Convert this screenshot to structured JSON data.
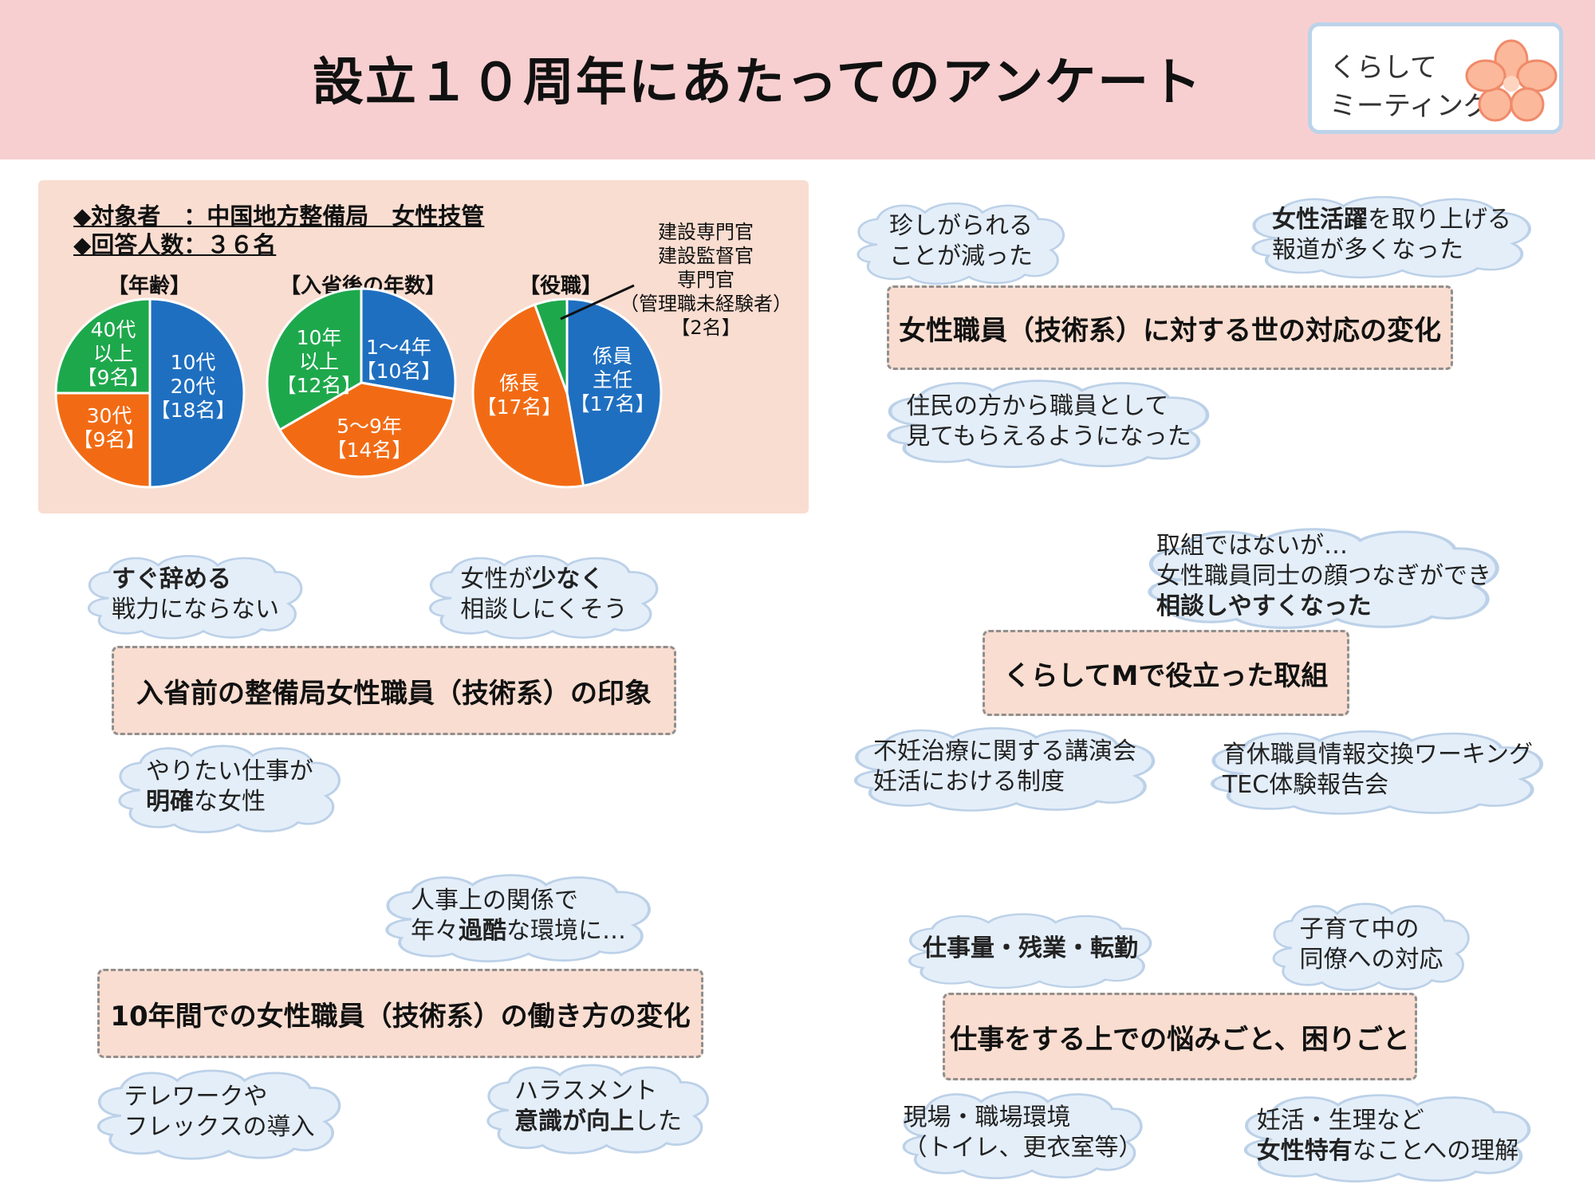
{
  "header": {
    "title": "設立１０周年にあたってのアンケート",
    "logo_line1": "くらして",
    "logo_line2": "ミーティング"
  },
  "survey": {
    "target": "◆対象者　：中国地方整備局　女性技管",
    "respondents": "◆回答人数：３６名",
    "age_title": "【年齢】",
    "age_slices": [
      {
        "label1": "10代",
        "label2": "20代",
        "label3": "【18名】"
      },
      {
        "label1": "30代",
        "label2": "【9名】"
      },
      {
        "label1": "40代",
        "label2": "以上",
        "label3": "【9名】"
      }
    ],
    "years_title": "【入省後の年数】",
    "years_slices": [
      {
        "label1": "1～4年",
        "label2": "【10名】"
      },
      {
        "label1": "5～9年",
        "label2": "【14名】"
      },
      {
        "label1": "10年",
        "label2": "以上",
        "label3": "【12名】"
      }
    ],
    "role_title": "【役職】",
    "role_slices": [
      {
        "label1": "係員",
        "label2": "主任",
        "label3": "【17名】"
      },
      {
        "label1": "係長",
        "label2": "【17名】"
      }
    ],
    "role_note": [
      "建設専門官",
      "建設監督官",
      "専門官",
      "（管理職未経験者）",
      "【2名】"
    ]
  },
  "chart_data": [
    {
      "type": "pie",
      "title": "【年齢】",
      "categories": [
        "10代 20代",
        "30代",
        "40代 以上"
      ],
      "values": [
        18,
        9,
        9
      ],
      "colors": [
        "#1f6fc0",
        "#f26b14",
        "#1ea84c"
      ]
    },
    {
      "type": "pie",
      "title": "【入省後の年数】",
      "categories": [
        "1～4年",
        "5～9年",
        "10年 以上"
      ],
      "values": [
        10,
        14,
        12
      ],
      "colors": [
        "#1f6fc0",
        "#f26b14",
        "#1ea84c"
      ]
    },
    {
      "type": "pie",
      "title": "【役職】",
      "categories": [
        "係員 主任",
        "係長",
        "建設専門官 建設監督官 専門官 （管理職未経験者）"
      ],
      "values": [
        17,
        17,
        2
      ],
      "colors": [
        "#1f6fc0",
        "#f26b14",
        "#1ea84c"
      ]
    }
  ],
  "topics": {
    "impression": {
      "title": "入省前の整備局女性職員（技術系）の印象",
      "c1": {
        "l1b": "すぐ辞める",
        "l2": "戦力にならない"
      },
      "c2": {
        "l1a": "女性が",
        "l1b": "少なく",
        "l2": "相談しにくそう"
      },
      "c3": {
        "l1": "やりたい仕事が",
        "l2b": "明確",
        "l2": "な女性"
      }
    },
    "society": {
      "title": "女性職員（技術系）に対する世の対応の変化",
      "c1": {
        "l1": "珍しがられる",
        "l2": "ことが減った"
      },
      "c2": {
        "l1b": "女性活躍",
        "l1": "を取り上げる",
        "l2": "報道が多くなった"
      },
      "c3": {
        "l1": "住民の方から職員として",
        "l2": "見てもらえるようになった"
      }
    },
    "kurashite": {
      "title": "くらしてMで役立った取組",
      "c1": {
        "l1": "取組ではないが…",
        "l2": "女性職員同士の顔つなぎができ",
        "l3b": "相談しやすくなった"
      },
      "c2": {
        "l1": "不妊治療に関する講演会",
        "l2": "妊活における制度"
      },
      "c3": {
        "l1": "育休職員情報交換ワーキング",
        "l2": "TEC体験報告会"
      }
    },
    "workstyle": {
      "title": "10年間での女性職員（技術系）の働き方の変化",
      "c1": {
        "l1": "人事上の関係で",
        "l2a": "年々",
        "l2b": "過酷",
        "l2": "な環境に…"
      },
      "c2": {
        "l1": "テレワークや",
        "l2": "フレックスの導入"
      },
      "c3": {
        "l1": "ハラスメント",
        "l2b": "意識が向上",
        "l2": "した"
      }
    },
    "worries": {
      "title": "仕事をする上での悩みごと、困りごと",
      "c1": {
        "l1": "仕事量・残業・転勤"
      },
      "c2": {
        "l1": "子育て中の",
        "l2": "同僚への対応"
      },
      "c3": {
        "l1": "現場・職場環境",
        "l2": "（トイレ、更衣室等）"
      },
      "c4": {
        "l1": "妊活・生理など",
        "l2b": "女性特有",
        "l2": "なことへの理解"
      }
    }
  }
}
